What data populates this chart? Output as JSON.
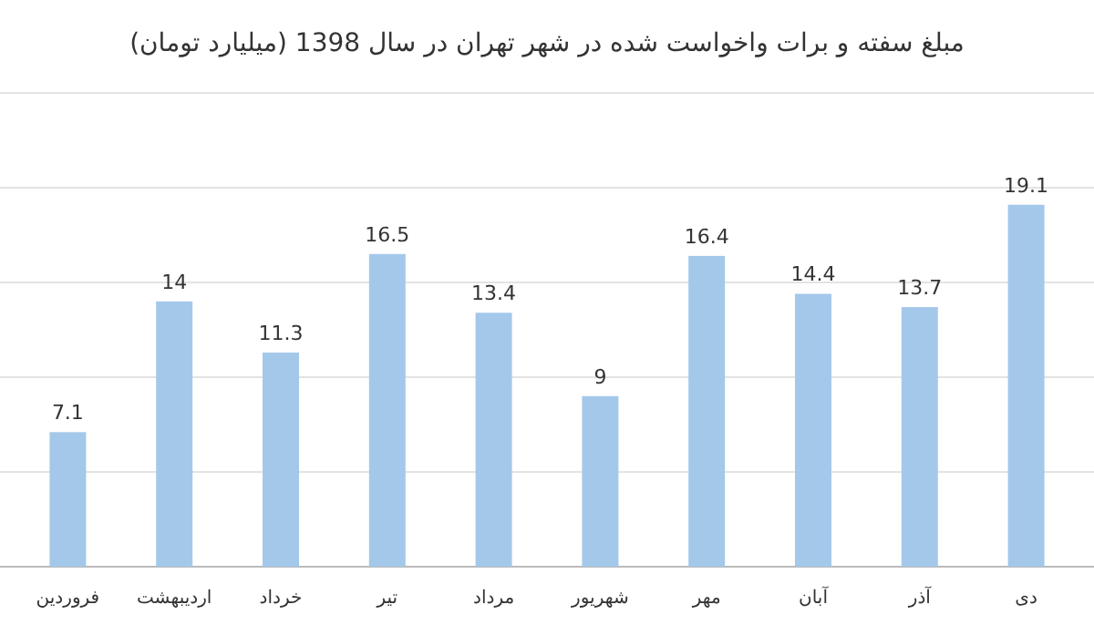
{
  "chart_data": {
    "type": "bar",
    "title": "مبلغ سفته و برات واخواست شده در شهر تهران در سال 1398 (میلیارد تومان)",
    "categories": [
      "فروردین",
      "اردیبهشت",
      "خرداد",
      "تیر",
      "مرداد",
      "شهریور",
      "مهر",
      "آبان",
      "آذر",
      "دی"
    ],
    "values": [
      7.1,
      14,
      11.3,
      16.5,
      13.4,
      9,
      16.4,
      14.4,
      13.7,
      19.1
    ],
    "color": "#a4c8ea",
    "data_labels": true,
    "grid": "y",
    "tick_labels": "x",
    "ylim": [
      0,
      25
    ],
    "yticks": [
      {
        "value": 0,
        "label": null
      },
      {
        "value": 5,
        "label": null
      },
      {
        "value": 10,
        "label": null
      },
      {
        "value": 15,
        "label": null
      },
      {
        "value": 20,
        "label": null
      },
      {
        "value": 25,
        "label": null
      }
    ]
  }
}
